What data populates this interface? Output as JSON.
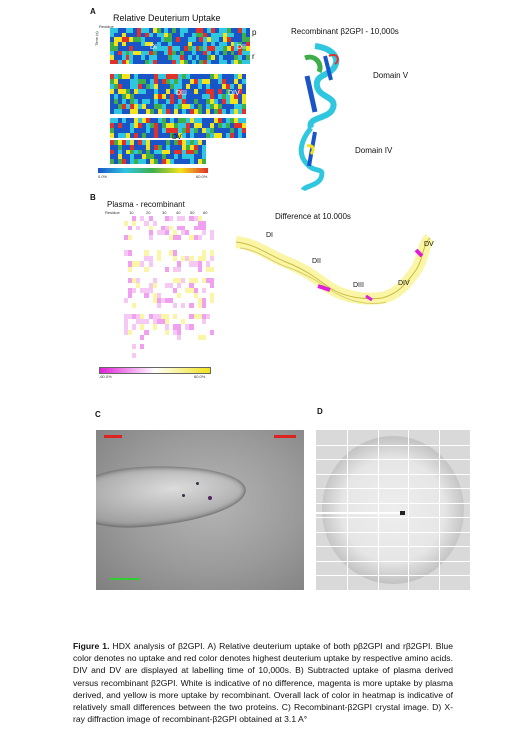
{
  "panelA": {
    "letter": "A",
    "title": "Relative Deuterium Uptake",
    "residue_label": "Residue",
    "time_label": "Time (s)",
    "times": [
      "10",
      "100",
      "1000",
      "10000"
    ],
    "tag_p": "p",
    "tag_r": "r",
    "domains": [
      "DI",
      "DII",
      "DIII",
      "DIV",
      "DV"
    ],
    "scale_min": "0.0%",
    "scale_max": "60.0%",
    "structure_title": "Recombinant β2GPI - 10,000s",
    "domain_v_label": "Domain V",
    "domain_iv_label": "Domain IV"
  },
  "panelB": {
    "letter": "B",
    "title": "Plasma - recombinant",
    "residue_label": "Residue",
    "residues": [
      "10",
      "20",
      "30",
      "40",
      "50",
      "60"
    ],
    "scale_min": "-60.0%",
    "scale_max": "60.0%",
    "structure_title": "Difference at 10.000s",
    "domain_labels": [
      "DI",
      "DII",
      "DIII",
      "DIV",
      "DV"
    ]
  },
  "panelC": {
    "letter": "C"
  },
  "panelD": {
    "letter": "D"
  },
  "caption": {
    "figure_label": "Figure 1.",
    "text": "HDX analysis of β2GPI. A) Relative deuterium uptake of both pβ2GPI and rβ2GPI. Blue color denotes no uptake and red color denotes highest deuterium uptake by respective amino acids. DIV and DV are displayed at labelling time of 10,000s. B) Subtracted uptake of plasma derived versus recombinant β2GPI. White is indicative of no difference, magenta is more uptake by plasma derived, and yellow is more uptake by recombinant. Overall lack of color in heatmap is indicative of relatively small differences between the two proteins. C) Recombinant-β2GPI crystal image. D) X-ray diffraction image of recombinant-β2GPI obtained at 3.1 A°"
  },
  "colors": {
    "blue": "#1a55c8",
    "cyan": "#2fc6e0",
    "green": "#3fae4a",
    "yellow": "#f2e31b",
    "red": "#e0322a",
    "magenta": "#e020d8",
    "pale_yellow": "#fbf6a6"
  }
}
